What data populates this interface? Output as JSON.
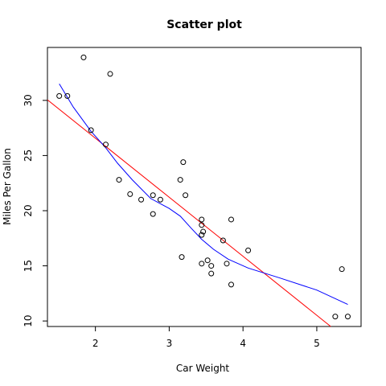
{
  "chart_data": {
    "type": "scatter",
    "title": "Scatter plot",
    "xlabel": "Car Weight",
    "ylabel": "Miles Per Gallon",
    "xlim": [
      1.35,
      5.6
    ],
    "ylim": [
      9.5,
      34.8
    ],
    "xticks": [
      2,
      3,
      4,
      5
    ],
    "yticks": [
      10,
      15,
      20,
      25,
      30
    ],
    "grid": false,
    "points": [
      [
        1.51,
        30.4
      ],
      [
        1.62,
        30.4
      ],
      [
        1.84,
        33.9
      ],
      [
        1.94,
        27.3
      ],
      [
        2.14,
        26.0
      ],
      [
        2.2,
        32.4
      ],
      [
        2.32,
        22.8
      ],
      [
        2.47,
        21.5
      ],
      [
        2.62,
        21.0
      ],
      [
        2.78,
        19.7
      ],
      [
        2.78,
        21.4
      ],
      [
        2.88,
        21.0
      ],
      [
        3.15,
        22.8
      ],
      [
        3.17,
        15.8
      ],
      [
        3.19,
        24.4
      ],
      [
        3.22,
        21.4
      ],
      [
        3.44,
        18.7
      ],
      [
        3.44,
        19.2
      ],
      [
        3.44,
        17.8
      ],
      [
        3.44,
        15.2
      ],
      [
        3.46,
        18.1
      ],
      [
        3.52,
        15.5
      ],
      [
        3.57,
        15.0
      ],
      [
        3.57,
        14.3
      ],
      [
        3.73,
        17.3
      ],
      [
        3.78,
        15.2
      ],
      [
        3.84,
        19.2
      ],
      [
        3.84,
        13.3
      ],
      [
        4.07,
        16.4
      ],
      [
        5.25,
        10.4
      ],
      [
        5.34,
        14.7
      ],
      [
        5.42,
        10.4
      ]
    ],
    "fit_line": {
      "name": "linear fit",
      "color": "#ff0000",
      "x": [
        1.35,
        5.6
      ],
      "y": [
        30.05,
        7.3
      ]
    },
    "smooth_curve": {
      "name": "lowess",
      "color": "#0000ff",
      "x": [
        1.51,
        1.7,
        1.94,
        2.14,
        2.3,
        2.5,
        2.75,
        3.0,
        3.15,
        3.3,
        3.44,
        3.6,
        3.8,
        4.07,
        4.5,
        5.0,
        5.42
      ],
      "y": [
        31.5,
        29.4,
        27.2,
        25.7,
        24.3,
        22.8,
        21.1,
        20.2,
        19.5,
        18.4,
        17.4,
        16.5,
        15.6,
        14.8,
        13.9,
        12.8,
        11.5
      ]
    }
  }
}
